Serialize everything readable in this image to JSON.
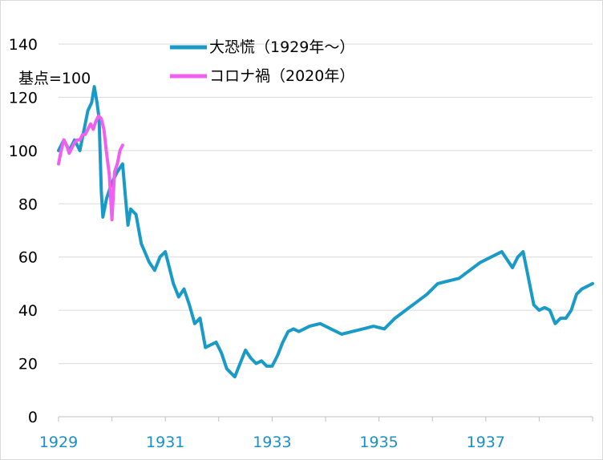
{
  "chart_data": {
    "type": "line",
    "title": "",
    "xlabel": "",
    "ylabel": "",
    "note": "基点=100",
    "ylim": [
      0,
      140
    ],
    "yticks": [
      0,
      20,
      40,
      60,
      80,
      100,
      120,
      140
    ],
    "xlim": [
      1929,
      1939
    ],
    "xticks": [
      "1929",
      "1931",
      "1933",
      "1935",
      "1937"
    ],
    "grid": "horizontal",
    "legend_position": "top-center",
    "series": [
      {
        "name": "大恐慌（1929年～）",
        "color": "#1a9bc7",
        "x": [
          1929.0,
          1929.1,
          1929.2,
          1929.3,
          1929.4,
          1929.5,
          1929.55,
          1929.62,
          1929.67,
          1929.72,
          1929.76,
          1929.8,
          1929.83,
          1929.9,
          1930.0,
          1930.1,
          1930.2,
          1930.25,
          1930.3,
          1930.35,
          1930.45,
          1930.55,
          1930.7,
          1930.8,
          1930.9,
          1931.0,
          1931.15,
          1931.25,
          1931.35,
          1931.45,
          1931.55,
          1931.65,
          1931.75,
          1931.85,
          1931.95,
          1932.05,
          1932.15,
          1932.3,
          1932.4,
          1932.5,
          1932.6,
          1932.7,
          1932.8,
          1932.9,
          1933.0,
          1933.1,
          1933.2,
          1933.3,
          1933.4,
          1933.5,
          1933.7,
          1933.9,
          1934.1,
          1934.3,
          1934.5,
          1934.7,
          1934.9,
          1935.1,
          1935.3,
          1935.5,
          1935.7,
          1935.9,
          1936.1,
          1936.3,
          1936.5,
          1936.7,
          1936.9,
          1937.1,
          1937.3,
          1937.5,
          1937.6,
          1937.7,
          1937.8,
          1937.9,
          1938.0,
          1938.1,
          1938.2,
          1938.3,
          1938.4,
          1938.5,
          1938.6,
          1938.7,
          1938.8,
          1938.9,
          1939.0
        ],
        "y": [
          100,
          104,
          100,
          104,
          100,
          110,
          115,
          118,
          124,
          118,
          112,
          85,
          75,
          82,
          88,
          92,
          95,
          83,
          72,
          78,
          76,
          65,
          58,
          55,
          60,
          62,
          50,
          45,
          48,
          42,
          35,
          37,
          26,
          27,
          28,
          24,
          18,
          15,
          20,
          25,
          22,
          20,
          21,
          19,
          19,
          23,
          28,
          32,
          33,
          32,
          34,
          35,
          33,
          31,
          32,
          33,
          34,
          33,
          37,
          40,
          43,
          46,
          50,
          51,
          52,
          55,
          58,
          60,
          62,
          56,
          60,
          62,
          52,
          42,
          40,
          41,
          40,
          35,
          37,
          37,
          40,
          46,
          48,
          49,
          50
        ]
      },
      {
        "name": "コロナ禍（2020年）",
        "color": "#f060f0",
        "x": [
          1929.0,
          1929.05,
          1929.1,
          1929.15,
          1929.2,
          1929.25,
          1929.3,
          1929.35,
          1929.4,
          1929.45,
          1929.5,
          1929.55,
          1929.6,
          1929.65,
          1929.7,
          1929.75,
          1929.8,
          1929.85,
          1929.9,
          1929.95,
          1930.0,
          1930.05,
          1930.1,
          1930.15,
          1930.2
        ],
        "y": [
          95,
          100,
          104,
          102,
          99,
          101,
          103,
          104,
          104,
          106,
          106,
          108,
          110,
          108,
          111,
          113,
          112,
          108,
          99,
          91,
          74,
          92,
          95,
          100,
          102
        ]
      }
    ]
  }
}
